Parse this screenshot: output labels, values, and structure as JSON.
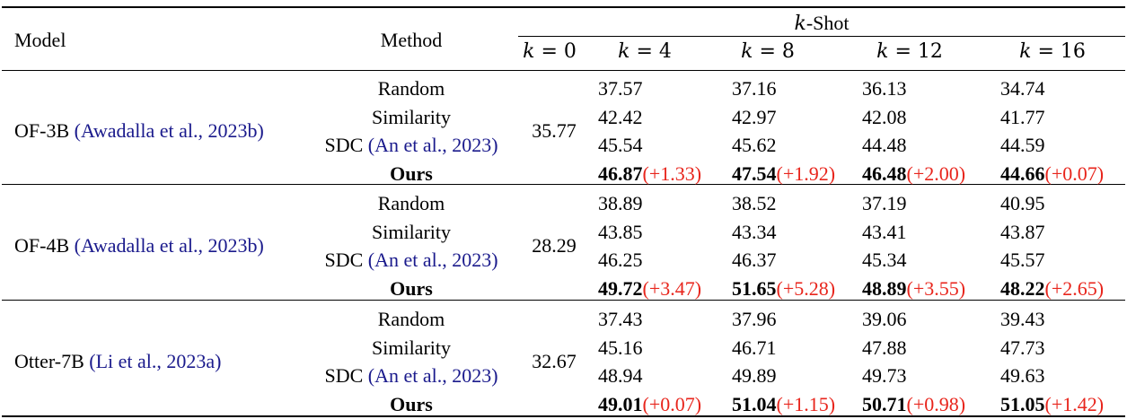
{
  "header": {
    "model": "Model",
    "method": "Method",
    "kshot_k": "k",
    "kshot_rest": "-Shot",
    "shots": [
      {
        "k": "k",
        "eq": " = 0"
      },
      {
        "k": "k",
        "eq": " = 4"
      },
      {
        "k": "k",
        "eq": " = 8"
      },
      {
        "k": "k",
        "eq": " = 12"
      },
      {
        "k": "k",
        "eq": " = 16"
      }
    ]
  },
  "groups": [
    {
      "model": "OF-3B",
      "model_cite": "(Awadalla et al., 2023b)",
      "zero_shot": "35.77",
      "methods": [
        {
          "name": "Random",
          "cite": "",
          "bold": false,
          "values": [
            "37.57",
            "37.16",
            "36.13",
            "34.74"
          ],
          "gains": [
            "",
            "",
            "",
            ""
          ]
        },
        {
          "name": "Similarity",
          "cite": "",
          "bold": false,
          "values": [
            "42.42",
            "42.97",
            "42.08",
            "41.77"
          ],
          "gains": [
            "",
            "",
            "",
            ""
          ]
        },
        {
          "name": "SDC",
          "cite": "(An et al., 2023)",
          "bold": false,
          "values": [
            "45.54",
            "45.62",
            "44.48",
            "44.59"
          ],
          "gains": [
            "",
            "",
            "",
            ""
          ]
        },
        {
          "name": "Ours",
          "cite": "",
          "bold": true,
          "values": [
            "46.87",
            "47.54",
            "46.48",
            "44.66"
          ],
          "gains": [
            "(+1.33)",
            "(+1.92)",
            "(+2.00)",
            "(+0.07)"
          ]
        }
      ]
    },
    {
      "model": "OF-4B",
      "model_cite": "(Awadalla et al., 2023b)",
      "zero_shot": "28.29",
      "methods": [
        {
          "name": "Random",
          "cite": "",
          "bold": false,
          "values": [
            "38.89",
            "38.52",
            "37.19",
            "40.95"
          ],
          "gains": [
            "",
            "",
            "",
            ""
          ]
        },
        {
          "name": "Similarity",
          "cite": "",
          "bold": false,
          "values": [
            "43.85",
            "43.34",
            "43.41",
            "43.87"
          ],
          "gains": [
            "",
            "",
            "",
            ""
          ]
        },
        {
          "name": "SDC",
          "cite": "(An et al., 2023)",
          "bold": false,
          "values": [
            "46.25",
            "46.37",
            "45.34",
            "45.57"
          ],
          "gains": [
            "",
            "",
            "",
            ""
          ]
        },
        {
          "name": "Ours",
          "cite": "",
          "bold": true,
          "values": [
            "49.72",
            "51.65",
            "48.89",
            "48.22"
          ],
          "gains": [
            "(+3.47)",
            "(+5.28)",
            "(+3.55)",
            "(+2.65)"
          ]
        }
      ]
    },
    {
      "model": "Otter-7B",
      "model_cite": "(Li et al., 2023a)",
      "zero_shot": "32.67",
      "methods": [
        {
          "name": "Random",
          "cite": "",
          "bold": false,
          "values": [
            "37.43",
            "37.96",
            "39.06",
            "39.43"
          ],
          "gains": [
            "",
            "",
            "",
            ""
          ]
        },
        {
          "name": "Similarity",
          "cite": "",
          "bold": false,
          "values": [
            "45.16",
            "46.71",
            "47.88",
            "47.73"
          ],
          "gains": [
            "",
            "",
            "",
            ""
          ]
        },
        {
          "name": "SDC",
          "cite": "(An et al., 2023)",
          "bold": false,
          "values": [
            "48.94",
            "49.89",
            "49.73",
            "49.63"
          ],
          "gains": [
            "",
            "",
            "",
            ""
          ]
        },
        {
          "name": "Ours",
          "cite": "",
          "bold": true,
          "values": [
            "49.01",
            "51.04",
            "50.71",
            "51.05"
          ],
          "gains": [
            "(+0.07)",
            "(+1.15)",
            "(+0.98)",
            "(+1.42)"
          ]
        }
      ]
    }
  ],
  "colors": {
    "citation": "#1a1a8c",
    "gain": "#e8251c",
    "text": "#000000"
  }
}
